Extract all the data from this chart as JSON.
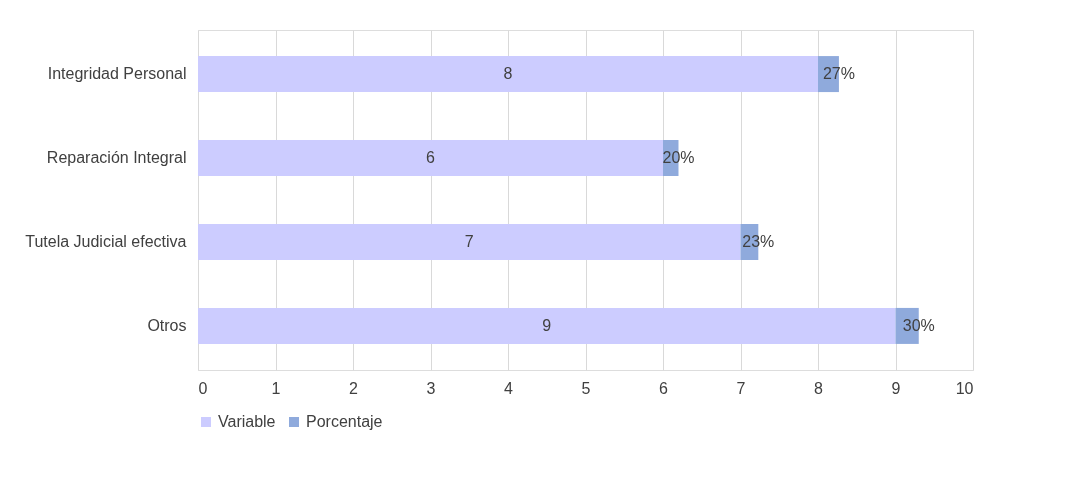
{
  "chart_data": {
    "type": "bar",
    "orientation": "horizontal",
    "stacked": true,
    "categories": [
      "Integridad Personal",
      "Reparación Integral",
      "Tutela Judicial efectiva",
      "Otros"
    ],
    "series": [
      {
        "name": "Variable",
        "color": "#ccccff",
        "values": [
          8,
          6,
          7,
          9
        ],
        "value_labels": [
          "8",
          "6",
          "7",
          "9"
        ]
      },
      {
        "name": "Porcentaje",
        "color": "#8faadc",
        "values": [
          0.27,
          0.2,
          0.23,
          0.3
        ],
        "value_labels": [
          "27%",
          "20%",
          "23%",
          "30%"
        ]
      }
    ],
    "xlim": [
      0,
      10
    ],
    "xticks": [
      0,
      1,
      2,
      3,
      4,
      5,
      6,
      7,
      8,
      9,
      10
    ],
    "grid": "x",
    "legend": "bottom"
  }
}
